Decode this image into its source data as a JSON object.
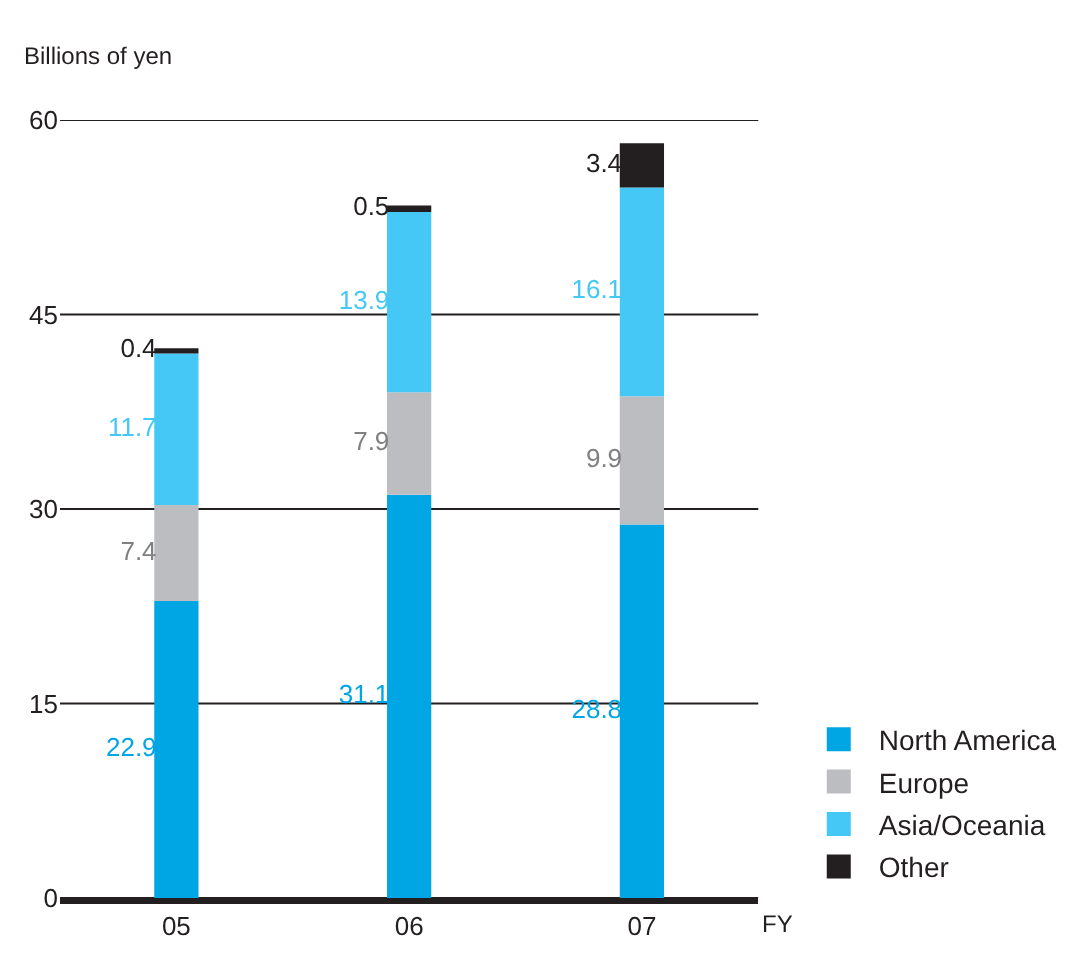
{
  "chart_data": {
    "type": "bar",
    "stacked": true,
    "ylabel": "Billions of yen",
    "xlabel": "FY",
    "categories": [
      "05",
      "06",
      "07"
    ],
    "series": [
      {
        "name": "North America",
        "color": "#00a5e3",
        "values": [
          22.9,
          31.1,
          28.8
        ]
      },
      {
        "name": "Europe",
        "color": "#bcbdc0",
        "values": [
          7.4,
          7.9,
          9.9
        ]
      },
      {
        "name": "Asia/Oceania",
        "color": "#45c8f5",
        "values": [
          11.7,
          13.9,
          16.1
        ]
      },
      {
        "name": "Other",
        "color": "#231f20",
        "values": [
          0.4,
          0.5,
          3.4
        ]
      }
    ],
    "ylim": [
      0,
      60
    ],
    "yticks": [
      0,
      15,
      30,
      45,
      60
    ],
    "grid": "y",
    "legend": "bottom right",
    "data_labels": true
  }
}
